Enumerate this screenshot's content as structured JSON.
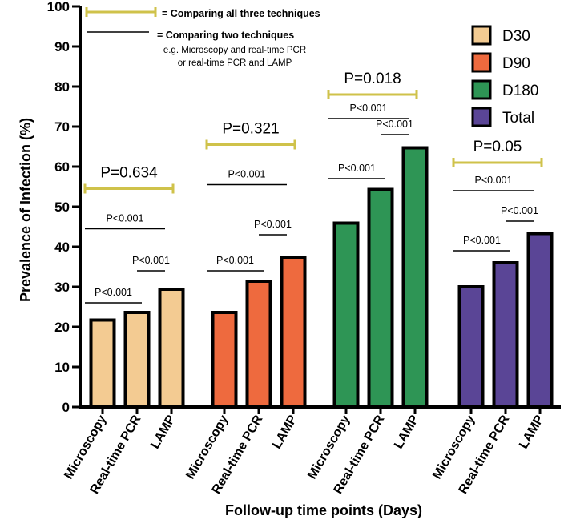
{
  "chart_data": {
    "type": "bar",
    "xlabel": "Follow-up time points (Days)",
    "ylabel": "Prevalence of Infection (%)",
    "ylim": [
      0,
      100
    ],
    "yticks": [
      0,
      10,
      20,
      30,
      40,
      50,
      60,
      70,
      80,
      90,
      100
    ],
    "categories": [
      "Microscopy",
      "Real-time PCR",
      "LAMP"
    ],
    "legend_position": "top-right",
    "series": [
      {
        "name": "D30",
        "color": "#F3CB92",
        "values": [
          21.7,
          23.6,
          29.4
        ]
      },
      {
        "name": "D90",
        "color": "#EE6A3E",
        "values": [
          23.6,
          31.4,
          37.4
        ]
      },
      {
        "name": "D180",
        "color": "#2E9555",
        "values": [
          45.9,
          54.3,
          64.7
        ]
      },
      {
        "name": "Total",
        "color": "#5A4596",
        "values": [
          30.0,
          36.0,
          43.3
        ]
      }
    ],
    "annotations": [
      {
        "group": "D30",
        "overall": {
          "label": "P=0.634",
          "y": 54.5
        },
        "pairs": [
          {
            "from": 0,
            "to": 1,
            "y": 26,
            "label": "P<0.001"
          },
          {
            "from": 1,
            "to": 2,
            "y": 34,
            "label": "P<0.001"
          },
          {
            "from": 0,
            "to": 2,
            "y": 44.5,
            "label": "P<0.001"
          }
        ]
      },
      {
        "group": "D90",
        "overall": {
          "label": "P=0.321",
          "y": 65.5
        },
        "pairs": [
          {
            "from": 0,
            "to": 1,
            "y": 34,
            "label": "P<0.001"
          },
          {
            "from": 1,
            "to": 2,
            "y": 43,
            "label": "P<0.001"
          },
          {
            "from": 0,
            "to": 2,
            "y": 55.5,
            "label": "P<0.001"
          }
        ]
      },
      {
        "group": "D180",
        "overall": {
          "label": "P=0.018",
          "y": 78
        },
        "pairs": [
          {
            "from": 0,
            "to": 1,
            "y": 57,
            "label": "P<0.001"
          },
          {
            "from": 1,
            "to": 2,
            "y": 68,
            "label": "P<0.001"
          },
          {
            "from": 0,
            "to": 2,
            "y": 72,
            "label": "P<0.001"
          }
        ]
      },
      {
        "group": "Total",
        "overall": {
          "label": "P=0.05",
          "y": 61
        },
        "pairs": [
          {
            "from": 0,
            "to": 1,
            "y": 39,
            "label": "P<0.001"
          },
          {
            "from": 1,
            "to": 2,
            "y": 46.4,
            "label": "P<0.001"
          },
          {
            "from": 0,
            "to": 2,
            "y": 54,
            "label": "P<0.001"
          }
        ]
      }
    ],
    "key": {
      "three": "= Comparing all three techniques",
      "two": "= Comparing two techniques",
      "two_example_1": "e.g. Microscopy and real-time PCR",
      "two_example_2": "or real-time PCR and LAMP"
    },
    "bracket_color": "#CFC24A"
  }
}
